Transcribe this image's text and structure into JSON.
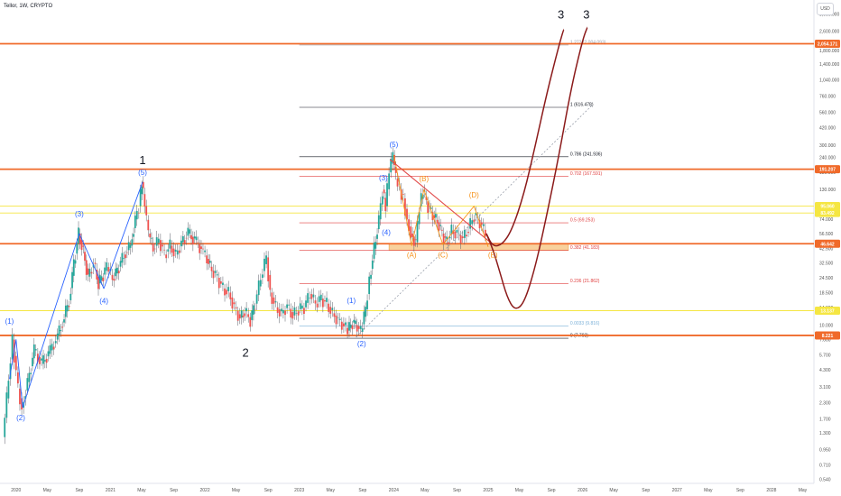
{
  "header": {
    "title": "Tellor, 1W, CRYPTO",
    "currency": "USD"
  },
  "chart_data": {
    "type": "line",
    "y_scale": "log",
    "y_ticks": [
      "3,600.000",
      "2,600.000",
      "1,800.000",
      "1,400.000",
      "1,040.000",
      "760.000",
      "560.000",
      "420.000",
      "300.000",
      "240.000",
      "180.000",
      "130.000",
      "95.000",
      "74.000",
      "56.500",
      "42.500",
      "32.500",
      "24.500",
      "18.500",
      "14.000",
      "10.000",
      "7.600",
      "5.700",
      "4.300",
      "3.100",
      "2.300",
      "1.700",
      "1.300",
      "0.950",
      "0.710",
      "0.540"
    ],
    "y_tick_values": [
      3600,
      2600,
      1800,
      1400,
      1040,
      760,
      560,
      420,
      300,
      240,
      180,
      130,
      95,
      74,
      56.5,
      42.5,
      32.5,
      24.5,
      18.5,
      14,
      10,
      7.6,
      5.7,
      4.3,
      3.1,
      2.3,
      1.7,
      1.3,
      0.95,
      0.71,
      0.54
    ],
    "x_ticks": [
      "2020",
      "May",
      "Sep",
      "2021",
      "May",
      "Sep",
      "2022",
      "May",
      "Sep",
      "2023",
      "May",
      "Sep",
      "2024",
      "May",
      "Sep",
      "2025",
      "May",
      "Sep",
      "2026",
      "May",
      "Sep",
      "2027",
      "May",
      "Sep",
      "2028",
      "May"
    ],
    "x_tick_values": [
      2020.0,
      2020.33,
      2020.67,
      2021.0,
      2021.33,
      2021.67,
      2022.0,
      2022.33,
      2022.67,
      2023.0,
      2023.33,
      2023.67,
      2024.0,
      2024.33,
      2024.67,
      2025.0,
      2025.33,
      2025.67,
      2026.0,
      2026.33,
      2026.67,
      2027.0,
      2027.33,
      2027.67,
      2028.0,
      2028.33
    ],
    "horizontal_levels": [
      {
        "label": "2,054.171",
        "value": 2054.171,
        "color": "#f06a2a",
        "style": "thick"
      },
      {
        "label": "191.207",
        "value": 191.207,
        "color": "#f06a2a",
        "style": "thick"
      },
      {
        "label": "95.060",
        "value": 95.06,
        "color": "#f5e642",
        "style": "thin"
      },
      {
        "label": "83.492",
        "value": 83.492,
        "color": "#f5e642",
        "style": "thin"
      },
      {
        "label": "46.642",
        "value": 46.642,
        "color": "#f06a2a",
        "style": "thick"
      },
      {
        "label": "13.137",
        "value": 13.137,
        "color": "#f5e642",
        "style": "thin"
      },
      {
        "label": "8.221",
        "value": 8.221,
        "color": "#f06a2a",
        "style": "thick"
      }
    ],
    "fib_levels": [
      {
        "label": "1.272 (2,004.093)",
        "value": 2004.093,
        "color": "#9aa0ac"
      },
      {
        "label": "1 (616.478)",
        "value": 616.478,
        "color": "#131722"
      },
      {
        "label": "0.786 (241.936)",
        "value": 241.936,
        "color": "#131722"
      },
      {
        "label": "0.702 (167.591)",
        "value": 167.591,
        "color": "#e04040"
      },
      {
        "label": "0.5 (69.253)",
        "value": 69.253,
        "color": "#e04040"
      },
      {
        "label": "0.382 (41.183)",
        "value": 41.183,
        "color": "#e04040"
      },
      {
        "label": "0.236 (21.862)",
        "value": 21.862,
        "color": "#e04040"
      },
      {
        "label": "0.0033 (9.816)",
        "value": 9.816,
        "color": "#7ab0d8"
      },
      {
        "label": "0 (7.793)",
        "value": 7.793,
        "color": "#131722"
      }
    ],
    "fib_x_range": [
      2023.0,
      2025.85
    ],
    "demand_zone": {
      "x_start": 2023.95,
      "x_end": 2025.85,
      "y_low": 41.183,
      "y_high": 46.642,
      "color": "#f7c98b"
    },
    "price_path": [
      [
        2019.87,
        1.2
      ],
      [
        2019.93,
        3.6
      ],
      [
        2019.97,
        7.6
      ],
      [
        2020.03,
        3.0
      ],
      [
        2020.07,
        2.1
      ],
      [
        2020.13,
        3.4
      ],
      [
        2020.2,
        6.2
      ],
      [
        2020.28,
        4.8
      ],
      [
        2020.35,
        5.8
      ],
      [
        2020.43,
        7.6
      ],
      [
        2020.5,
        10.5
      ],
      [
        2020.57,
        16.0
      ],
      [
        2020.62,
        32.0
      ],
      [
        2020.67,
        56.5
      ],
      [
        2020.72,
        40.0
      ],
      [
        2020.77,
        25.0
      ],
      [
        2020.83,
        32.5
      ],
      [
        2020.88,
        22.0
      ],
      [
        2020.93,
        26.0
      ],
      [
        2020.97,
        30.0
      ],
      [
        2021.03,
        24.0
      ],
      [
        2021.08,
        28.0
      ],
      [
        2021.15,
        38.0
      ],
      [
        2021.22,
        45.0
      ],
      [
        2021.27,
        74.0
      ],
      [
        2021.31,
        95.0
      ],
      [
        2021.34,
        150.0
      ],
      [
        2021.37,
        95.0
      ],
      [
        2021.41,
        56.5
      ],
      [
        2021.46,
        42.5
      ],
      [
        2021.52,
        50.0
      ],
      [
        2021.58,
        38.0
      ],
      [
        2021.64,
        45.0
      ],
      [
        2021.7,
        38.0
      ],
      [
        2021.76,
        48.0
      ],
      [
        2021.83,
        56.5
      ],
      [
        2021.9,
        50.0
      ],
      [
        2021.97,
        42.5
      ],
      [
        2022.03,
        35.0
      ],
      [
        2022.08,
        28.0
      ],
      [
        2022.14,
        24.5
      ],
      [
        2022.2,
        20.0
      ],
      [
        2022.26,
        18.5
      ],
      [
        2022.32,
        14.0
      ],
      [
        2022.38,
        11.5
      ],
      [
        2022.43,
        13.0
      ],
      [
        2022.49,
        11.0
      ],
      [
        2022.54,
        15.0
      ],
      [
        2022.6,
        24.5
      ],
      [
        2022.66,
        36.0
      ],
      [
        2022.7,
        18.5
      ],
      [
        2022.76,
        14.0
      ],
      [
        2022.82,
        12.5
      ],
      [
        2022.88,
        14.5
      ],
      [
        2022.94,
        12.0
      ],
      [
        2023.0,
        13.5
      ],
      [
        2023.06,
        14.0
      ],
      [
        2023.12,
        18.0
      ],
      [
        2023.18,
        15.0
      ],
      [
        2023.24,
        16.5
      ],
      [
        2023.3,
        15.0
      ],
      [
        2023.36,
        12.5
      ],
      [
        2023.42,
        11.0
      ],
      [
        2023.48,
        10.0
      ],
      [
        2023.52,
        9.0
      ],
      [
        2023.57,
        10.5
      ],
      [
        2023.62,
        9.8
      ],
      [
        2023.66,
        8.8
      ],
      [
        2023.71,
        13.5
      ],
      [
        2023.75,
        24.0
      ],
      [
        2023.8,
        42.5
      ],
      [
        2023.85,
        74.0
      ],
      [
        2023.89,
        130.0
      ],
      [
        2023.92,
        95.0
      ],
      [
        2023.96,
        180.0
      ],
      [
        2024.0,
        250.0
      ],
      [
        2024.03,
        160.0
      ],
      [
        2024.07,
        130.0
      ],
      [
        2024.11,
        110.0
      ],
      [
        2024.15,
        74.0
      ],
      [
        2024.19,
        56.5
      ],
      [
        2024.24,
        48.0
      ],
      [
        2024.28,
        95.0
      ],
      [
        2024.32,
        125.0
      ],
      [
        2024.37,
        95.0
      ],
      [
        2024.42,
        80.0
      ],
      [
        2024.47,
        70.0
      ],
      [
        2024.52,
        56.5
      ],
      [
        2024.57,
        48.0
      ],
      [
        2024.62,
        60.0
      ],
      [
        2024.68,
        56.5
      ],
      [
        2024.74,
        52.0
      ],
      [
        2024.8,
        62.0
      ],
      [
        2024.86,
        80.0
      ],
      [
        2024.92,
        70.0
      ],
      [
        2024.98,
        56.5
      ]
    ],
    "projection_paths": [
      {
        "name": "",
        "color": "#8b1a1a",
        "points": [
          [
            2024.98,
            56.5
          ],
          [
            2025.05,
            44.0
          ],
          [
            2025.15,
            46.0
          ],
          [
            2025.25,
            60.0
          ],
          [
            2025.38,
            120.0
          ],
          [
            2025.5,
            300.0
          ],
          [
            2025.62,
            800.0
          ],
          [
            2025.75,
            2000.0
          ],
          [
            2025.8,
            2700.0
          ]
        ]
      },
      {
        "name": "",
        "color": "#8b1a1a",
        "points": [
          [
            2024.98,
            56.5
          ],
          [
            2025.05,
            42.0
          ],
          [
            2025.12,
            28.0
          ],
          [
            2025.2,
            17.0
          ],
          [
            2025.28,
            13.2
          ],
          [
            2025.38,
            15.0
          ],
          [
            2025.5,
            30.0
          ],
          [
            2025.62,
            80.0
          ],
          [
            2025.75,
            250.0
          ],
          [
            2025.88,
            900.0
          ],
          [
            2026.0,
            2200.0
          ],
          [
            2026.05,
            2800.0
          ]
        ]
      }
    ],
    "blue_wave_path": [
      [
        2019.93,
        3.6
      ],
      [
        2020.0,
        7.6
      ],
      [
        2020.07,
        2.1
      ],
      [
        2020.67,
        56.5
      ],
      [
        2020.93,
        20.0
      ],
      [
        2021.34,
        150.0
      ]
    ],
    "orange_correction_path": [
      [
        2024.0,
        250.0
      ],
      [
        2024.19,
        45.0
      ],
      [
        2024.32,
        130.0
      ],
      [
        2024.52,
        46.0
      ],
      [
        2024.85,
        95.0
      ],
      [
        2025.0,
        44.0
      ]
    ],
    "trendline_red": [
      [
        2023.96,
        230.0
      ],
      [
        2025.05,
        46.0
      ]
    ],
    "trendline_dotted": [
      [
        2023.6,
        8.0
      ],
      [
        2026.1,
        640.0
      ]
    ],
    "wave_labels_big": [
      {
        "text": "1",
        "x": 2021.34,
        "y": 210.0
      },
      {
        "text": "2",
        "x": 2022.43,
        "y": 5.5
      },
      {
        "text": "3",
        "x": 2025.77,
        "y": 3300.0
      },
      {
        "text": "3",
        "x": 2026.04,
        "y": 3300.0
      }
    ],
    "wave_labels_small": [
      {
        "text": "(1)",
        "x": 2019.93,
        "y": 10.3,
        "color": "#2962ff"
      },
      {
        "text": "(2)",
        "x": 2020.05,
        "y": 1.65,
        "color": "#2962ff"
      },
      {
        "text": "(3)",
        "x": 2020.67,
        "y": 78.0,
        "color": "#2962ff"
      },
      {
        "text": "(4)",
        "x": 2020.93,
        "y": 15.0,
        "color": "#2962ff"
      },
      {
        "text": "(5)",
        "x": 2021.34,
        "y": 172.0,
        "color": "#2962ff"
      },
      {
        "text": "(1)",
        "x": 2023.55,
        "y": 15.2,
        "color": "#2962ff"
      },
      {
        "text": "(2)",
        "x": 2023.66,
        "y": 6.7,
        "color": "#2962ff"
      },
      {
        "text": "(3)",
        "x": 2023.89,
        "y": 155.0,
        "color": "#2962ff"
      },
      {
        "text": "(4)",
        "x": 2023.92,
        "y": 55.0,
        "color": "#2962ff"
      },
      {
        "text": "(5)",
        "x": 2024.0,
        "y": 290.0,
        "color": "#2962ff"
      },
      {
        "text": "(A)",
        "x": 2024.19,
        "y": 36.0,
        "color": "#f7931a"
      },
      {
        "text": "(B)",
        "x": 2024.32,
        "y": 152.0,
        "color": "#f7931a"
      },
      {
        "text": "(C)",
        "x": 2024.52,
        "y": 36.0,
        "color": "#f7931a"
      },
      {
        "text": "(D)",
        "x": 2024.85,
        "y": 112.0,
        "color": "#f7931a"
      },
      {
        "text": "(E)",
        "x": 2025.05,
        "y": 36.0,
        "color": "#f7931a"
      }
    ],
    "x_range": [
      2019.83,
      2028.45
    ],
    "y_range": [
      0.5,
      4700
    ],
    "grid": false,
    "colors": {
      "candle_up": "#26a69a",
      "candle_down": "#ef5350",
      "candle_neutral": "#5d606b",
      "blue_wave": "#2962ff"
    }
  }
}
